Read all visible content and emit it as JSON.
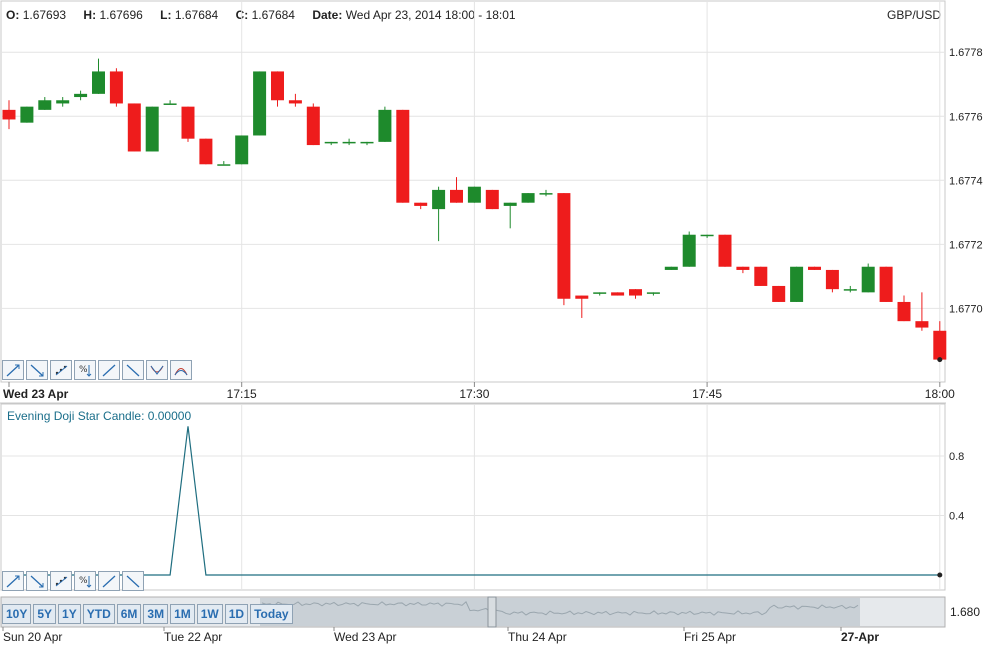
{
  "header": {
    "open_label": "O:",
    "open_value": "1.67693",
    "high_label": "H:",
    "high_value": "1.67696",
    "low_label": "L:",
    "low_value": "1.67684",
    "close_label": "C:",
    "close_value": "1.67684",
    "date_label": "Date:",
    "date_value": "Wed Apr 23, 2014 18:00 - 18:01",
    "symbol": "GBP/USD"
  },
  "toolbar_main": [
    "trend-up-icon",
    "trend-down-icon",
    "scatter-icon",
    "percent-icon",
    "line-up-icon",
    "line-down-icon",
    "curve-down-icon",
    "curve-up-icon"
  ],
  "toolbar_indicator": [
    "trend-up-icon",
    "trend-down-icon",
    "scatter-icon",
    "percent-icon",
    "line-up-icon",
    "line-down-icon"
  ],
  "indicator": {
    "label": "Evening Doji Star Candle: 0.00000"
  },
  "ranges": [
    "10Y",
    "5Y",
    "1Y",
    "YTD",
    "6M",
    "3M",
    "1M",
    "1W",
    "1D",
    "Today"
  ],
  "navigator": {
    "value_label": "1.680",
    "x_labels": [
      "Sun 20 Apr",
      "Tue 22 Apr",
      "Wed 23 Apr",
      "Thu 24 Apr",
      "Fri 25 Apr",
      "27-Apr"
    ]
  },
  "colors": {
    "up": "#1e8a2c",
    "down": "#ee1c1c",
    "indicator": "#1f6e80",
    "grid": "#e4e4e4"
  },
  "chart_data": [
    {
      "type": "candlestick",
      "x_labels": [
        "Wed 23 Apr",
        "17:15",
        "17:30",
        "17:45",
        "18:00"
      ],
      "x_label_minutes": [
        0,
        15,
        30,
        45,
        60
      ],
      "y_ticks": [
        1.677,
        1.6772,
        1.6774,
        1.6776,
        1.6778
      ],
      "y_tick_labels": [
        "1.6770",
        "1.6772",
        "1.6774",
        "1.6776",
        "1.6778"
      ],
      "ylim": [
        1.67677,
        1.67796
      ],
      "grid": true,
      "candles": [
        {
          "t": 0,
          "o": 1.67762,
          "h": 1.67765,
          "l": 1.67756,
          "c": 1.67759
        },
        {
          "t": 1,
          "o": 1.67758,
          "h": 1.67763,
          "l": 1.67758,
          "c": 1.67763
        },
        {
          "t": 2,
          "o": 1.67762,
          "h": 1.67766,
          "l": 1.67762,
          "c": 1.67765
        },
        {
          "t": 3,
          "o": 1.67764,
          "h": 1.67766,
          "l": 1.67763,
          "c": 1.67765
        },
        {
          "t": 4,
          "o": 1.67766,
          "h": 1.67768,
          "l": 1.67765,
          "c": 1.67767
        },
        {
          "t": 5,
          "o": 1.67767,
          "h": 1.67778,
          "l": 1.67767,
          "c": 1.67774
        },
        {
          "t": 6,
          "o": 1.67774,
          "h": 1.67775,
          "l": 1.67763,
          "c": 1.67764
        },
        {
          "t": 7,
          "o": 1.67764,
          "h": 1.67764,
          "l": 1.67749,
          "c": 1.67749
        },
        {
          "t": 8,
          "o": 1.67749,
          "h": 1.67763,
          "l": 1.67749,
          "c": 1.67763
        },
        {
          "t": 9,
          "o": 1.67764,
          "h": 1.67765,
          "l": 1.67764,
          "c": 1.67764
        },
        {
          "t": 10,
          "o": 1.67763,
          "h": 1.67763,
          "l": 1.67752,
          "c": 1.67753
        },
        {
          "t": 11,
          "o": 1.67753,
          "h": 1.67753,
          "l": 1.67745,
          "c": 1.67745
        },
        {
          "t": 12,
          "o": 1.67745,
          "h": 1.67746,
          "l": 1.67745,
          "c": 1.67745
        },
        {
          "t": 13,
          "o": 1.67745,
          "h": 1.67754,
          "l": 1.67745,
          "c": 1.67754
        },
        {
          "t": 14,
          "o": 1.67754,
          "h": 1.67774,
          "l": 1.67754,
          "c": 1.67774
        },
        {
          "t": 15,
          "o": 1.67774,
          "h": 1.67774,
          "l": 1.67763,
          "c": 1.67765
        },
        {
          "t": 16,
          "o": 1.67765,
          "h": 1.67767,
          "l": 1.67763,
          "c": 1.67764
        },
        {
          "t": 17,
          "o": 1.67763,
          "h": 1.67764,
          "l": 1.67751,
          "c": 1.67751
        },
        {
          "t": 18,
          "o": 1.67752,
          "h": 1.67752,
          "l": 1.67751,
          "c": 1.67752
        },
        {
          "t": 19,
          "o": 1.67752,
          "h": 1.67753,
          "l": 1.67751,
          "c": 1.67752
        },
        {
          "t": 20,
          "o": 1.67752,
          "h": 1.67752,
          "l": 1.67751,
          "c": 1.67752
        },
        {
          "t": 21,
          "o": 1.67752,
          "h": 1.67763,
          "l": 1.67752,
          "c": 1.67762
        },
        {
          "t": 22,
          "o": 1.67762,
          "h": 1.67762,
          "l": 1.67733,
          "c": 1.67733
        },
        {
          "t": 23,
          "o": 1.67733,
          "h": 1.67733,
          "l": 1.67731,
          "c": 1.67732
        },
        {
          "t": 24,
          "o": 1.67731,
          "h": 1.67738,
          "l": 1.67721,
          "c": 1.67737
        },
        {
          "t": 25,
          "o": 1.67737,
          "h": 1.67741,
          "l": 1.67733,
          "c": 1.67733
        },
        {
          "t": 26,
          "o": 1.67733,
          "h": 1.67738,
          "l": 1.67733,
          "c": 1.67738
        },
        {
          "t": 27,
          "o": 1.67737,
          "h": 1.67737,
          "l": 1.67731,
          "c": 1.67731
        },
        {
          "t": 28,
          "o": 1.67732,
          "h": 1.67733,
          "l": 1.67725,
          "c": 1.67733
        },
        {
          "t": 29,
          "o": 1.67733,
          "h": 1.67736,
          "l": 1.67733,
          "c": 1.67736
        },
        {
          "t": 30,
          "o": 1.67736,
          "h": 1.67737,
          "l": 1.67735,
          "c": 1.67736
        },
        {
          "t": 31,
          "o": 1.67736,
          "h": 1.67736,
          "l": 1.67701,
          "c": 1.67703
        },
        {
          "t": 32,
          "o": 1.67704,
          "h": 1.67704,
          "l": 1.67697,
          "c": 1.67703
        },
        {
          "t": 33,
          "o": 1.67705,
          "h": 1.67705,
          "l": 1.67704,
          "c": 1.67705
        },
        {
          "t": 34,
          "o": 1.67705,
          "h": 1.67705,
          "l": 1.67704,
          "c": 1.67704
        },
        {
          "t": 35,
          "o": 1.67706,
          "h": 1.67706,
          "l": 1.67703,
          "c": 1.67704
        },
        {
          "t": 36,
          "o": 1.67705,
          "h": 1.67705,
          "l": 1.67704,
          "c": 1.67705
        },
        {
          "t": 37,
          "o": 1.67712,
          "h": 1.67713,
          "l": 1.67712,
          "c": 1.67713
        },
        {
          "t": 38,
          "o": 1.67713,
          "h": 1.67724,
          "l": 1.67713,
          "c": 1.67723
        },
        {
          "t": 39,
          "o": 1.67723,
          "h": 1.67723,
          "l": 1.67722,
          "c": 1.67723
        },
        {
          "t": 40,
          "o": 1.67723,
          "h": 1.67723,
          "l": 1.67713,
          "c": 1.67713
        },
        {
          "t": 41,
          "o": 1.67713,
          "h": 1.67713,
          "l": 1.67711,
          "c": 1.67712
        },
        {
          "t": 42,
          "o": 1.67713,
          "h": 1.67713,
          "l": 1.67707,
          "c": 1.67707
        },
        {
          "t": 43,
          "o": 1.67707,
          "h": 1.67707,
          "l": 1.67702,
          "c": 1.67702
        },
        {
          "t": 44,
          "o": 1.67702,
          "h": 1.67713,
          "l": 1.67702,
          "c": 1.67713
        },
        {
          "t": 45,
          "o": 1.67713,
          "h": 1.67713,
          "l": 1.67712,
          "c": 1.67712
        },
        {
          "t": 46,
          "o": 1.67712,
          "h": 1.67712,
          "l": 1.67705,
          "c": 1.67706
        },
        {
          "t": 47,
          "o": 1.67706,
          "h": 1.67707,
          "l": 1.67705,
          "c": 1.67706
        },
        {
          "t": 48,
          "o": 1.67705,
          "h": 1.67714,
          "l": 1.67705,
          "c": 1.67713
        },
        {
          "t": 49,
          "o": 1.67713,
          "h": 1.67713,
          "l": 1.67702,
          "c": 1.67702
        },
        {
          "t": 50,
          "o": 1.67702,
          "h": 1.67704,
          "l": 1.67696,
          "c": 1.67696
        },
        {
          "t": 51,
          "o": 1.67696,
          "h": 1.67705,
          "l": 1.67693,
          "c": 1.67694
        },
        {
          "t": 52,
          "o": 1.67693,
          "h": 1.67696,
          "l": 1.67684,
          "c": 1.67684
        }
      ]
    },
    {
      "type": "line",
      "name": "Evening Doji Star Candle",
      "y_ticks": [
        0.4,
        0.8
      ],
      "y_tick_labels": [
        "0.4",
        "0.8"
      ],
      "ylim": [
        0,
        1.15
      ],
      "x": [
        0,
        9,
        10,
        11,
        52
      ],
      "y": [
        0,
        0,
        1,
        0,
        0
      ]
    },
    {
      "type": "area",
      "name": "navigator",
      "x_labels": [
        "Sun 20 Apr",
        "Tue 22 Apr",
        "Wed 23 Apr",
        "Thu 24 Apr",
        "Fri 25 Apr",
        "27-Apr"
      ]
    }
  ]
}
